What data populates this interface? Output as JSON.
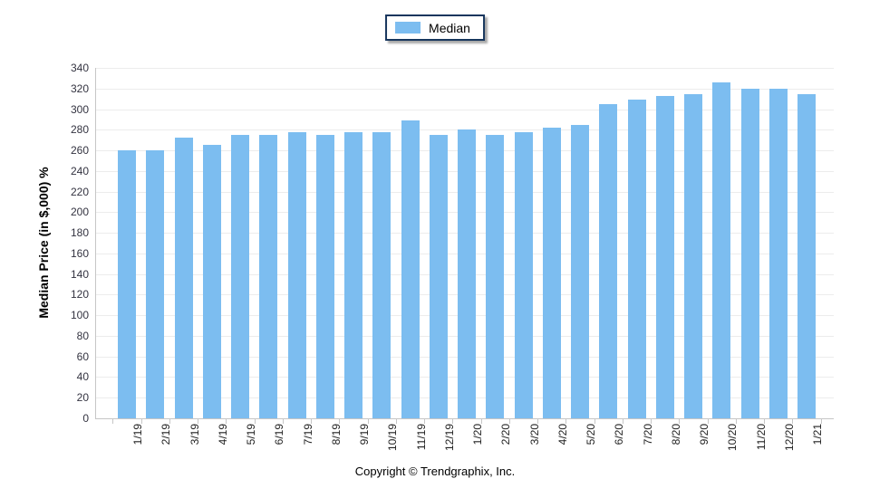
{
  "legend": {
    "label": "Median",
    "swatch_color": "#7CBDF0",
    "border_color": "#17365D"
  },
  "y_axis": {
    "label": "Median Price (in $,000) %",
    "min": 0,
    "max": 340,
    "step": 20
  },
  "footer": {
    "copyright": "Copyright © Trendgraphix, Inc."
  },
  "chart_data": {
    "type": "bar",
    "title": "",
    "categories": [
      "1/19",
      "2/19",
      "3/19",
      "4/19",
      "5/19",
      "6/19",
      "7/19",
      "8/19",
      "9/19",
      "10/19",
      "11/19",
      "12/19",
      "1/20",
      "2/20",
      "3/20",
      "4/20",
      "5/20",
      "6/20",
      "7/20",
      "8/20",
      "9/20",
      "10/20",
      "11/20",
      "12/20",
      "1/21"
    ],
    "series": [
      {
        "name": "Median",
        "color": "#7CBDF0",
        "values": [
          260,
          260,
          272,
          265,
          275,
          275,
          278,
          275,
          278,
          278,
          289,
          275,
          280,
          275,
          278,
          282,
          285,
          305,
          309,
          313,
          315,
          326,
          320,
          320,
          315
        ]
      }
    ],
    "xlabel": "",
    "ylabel": "Median Price (in $,000) %",
    "ylim": [
      0,
      340
    ],
    "ytick_step": 20,
    "grid": "horizontal",
    "gridline_color": "#ECECEC",
    "legend_position": "top-center"
  }
}
